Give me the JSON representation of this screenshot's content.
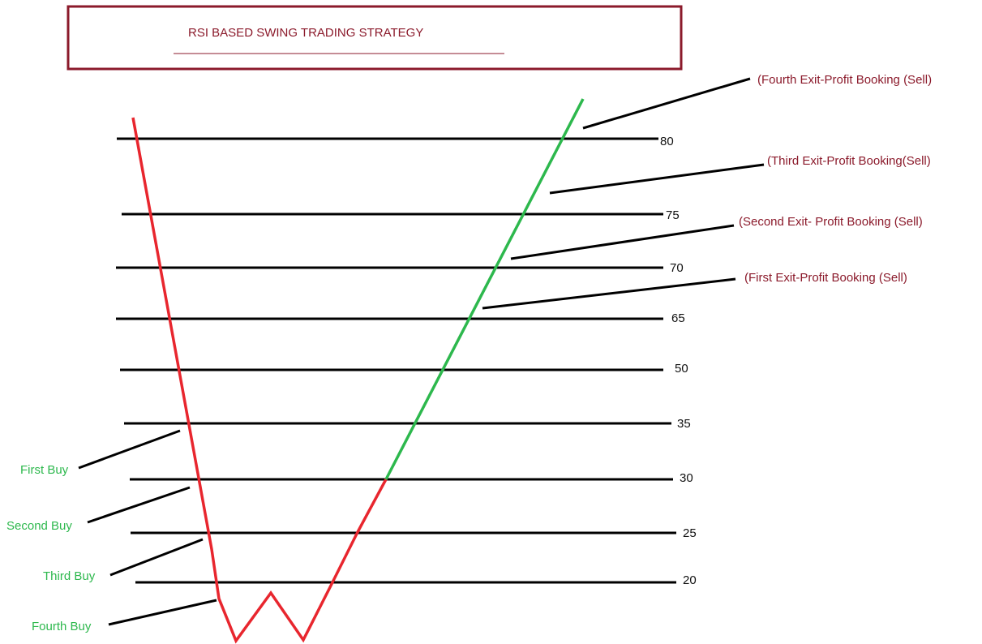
{
  "title": "RSI  BASED  SWING TRADING STRATEGY",
  "colors": {
    "title_text": "#8b1a2b",
    "title_border": "#8b1a2b",
    "exit_text": "#8b1a2b",
    "buy_text": "#2db84d",
    "falling_line": "#e8262e",
    "rising_line": "#2db84d",
    "level_line": "#000000"
  },
  "levels": [
    "80",
    "75",
    "70",
    "65",
    "50",
    "35",
    "30",
    "25",
    "20"
  ],
  "exits": [
    "(Fourth Exit-Profit Booking (Sell)",
    "(Third Exit-Profit Booking(Sell)",
    "(Second Exit- Profit Booking (Sell)",
    "(First Exit-Profit Booking (Sell)"
  ],
  "buys": [
    "First Buy",
    "Second Buy",
    "Third Buy",
    "Fourth Buy"
  ]
}
